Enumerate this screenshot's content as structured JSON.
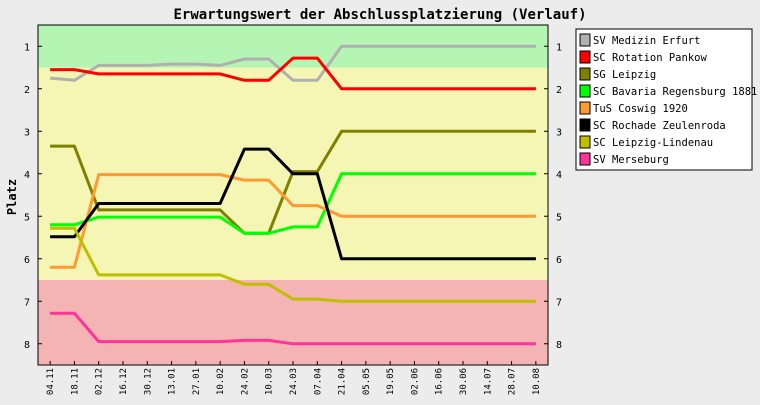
{
  "chart_data": {
    "type": "line",
    "title": "Erwartungswert der Abschlussplatzierung (Verlauf)",
    "ylabel": "Platz",
    "xlabel": "",
    "ylim": [
      1,
      8
    ],
    "y_inverted": true,
    "grid": false,
    "legend_position": "right",
    "y_ticks": [
      1,
      2,
      3,
      4,
      5,
      6,
      7,
      8
    ],
    "x": [
      "04.11",
      "18.11",
      "02.12",
      "16.12",
      "30.12",
      "13.01",
      "27.01",
      "10.02",
      "24.02",
      "10.03",
      "24.03",
      "07.04",
      "21.04",
      "05.05",
      "19.05",
      "02.06",
      "16.06",
      "30.06",
      "14.07",
      "28.07",
      "10.08"
    ],
    "bands": [
      {
        "from": 0.5,
        "to": 1.5,
        "color": "#b4f5b4"
      },
      {
        "from": 1.5,
        "to": 6.5,
        "color": "#f5f5b4"
      },
      {
        "from": 6.5,
        "to": 8.5,
        "color": "#f5b4b4"
      }
    ],
    "series": [
      {
        "name": "SV Medizin Erfurt",
        "color": "#b0b0b0",
        "values": [
          1.75,
          1.8,
          1.45,
          1.45,
          1.45,
          1.42,
          1.42,
          1.45,
          1.3,
          1.3,
          1.8,
          1.8,
          1.0,
          1.0,
          1.0,
          1.0,
          1.0,
          1.0,
          1.0,
          1.0,
          1.0
        ]
      },
      {
        "name": "SC Rotation Pankow",
        "color": "#ff0000",
        "values": [
          1.55,
          1.55,
          1.65,
          1.65,
          1.65,
          1.65,
          1.65,
          1.65,
          1.8,
          1.8,
          1.28,
          1.28,
          2.0,
          2.0,
          2.0,
          2.0,
          2.0,
          2.0,
          2.0,
          2.0,
          2.0
        ]
      },
      {
        "name": "SG Leipzig",
        "color": "#808000",
        "values": [
          3.35,
          3.35,
          4.85,
          4.85,
          4.85,
          4.85,
          4.85,
          4.85,
          5.4,
          5.4,
          3.95,
          3.95,
          3.0,
          3.0,
          3.0,
          3.0,
          3.0,
          3.0,
          3.0,
          3.0,
          3.0
        ]
      },
      {
        "name": "SC Bavaria Regensburg 1881",
        "color": "#00ff00",
        "values": [
          5.2,
          5.2,
          5.02,
          5.02,
          5.02,
          5.02,
          5.02,
          5.02,
          5.4,
          5.4,
          5.25,
          5.25,
          4.0,
          4.0,
          4.0,
          4.0,
          4.0,
          4.0,
          4.0,
          4.0,
          4.0
        ]
      },
      {
        "name": "TuS Coswig 1920",
        "color": "#ff9933",
        "values": [
          6.2,
          6.2,
          4.02,
          4.02,
          4.02,
          4.02,
          4.02,
          4.02,
          4.15,
          4.15,
          4.75,
          4.75,
          5.0,
          5.0,
          5.0,
          5.0,
          5.0,
          5.0,
          5.0,
          5.0,
          5.0
        ]
      },
      {
        "name": "SC Rochade Zeulenroda",
        "color": "#000000",
        "values": [
          5.48,
          5.48,
          4.7,
          4.7,
          4.7,
          4.7,
          4.7,
          4.7,
          3.42,
          3.42,
          4.0,
          4.0,
          6.0,
          6.0,
          6.0,
          6.0,
          6.0,
          6.0,
          6.0,
          6.0,
          6.0
        ]
      },
      {
        "name": "SC Leipzig-Lindenau",
        "color": "#bfbf00",
        "values": [
          5.28,
          5.28,
          6.38,
          6.38,
          6.38,
          6.38,
          6.38,
          6.38,
          6.6,
          6.6,
          6.95,
          6.95,
          7.0,
          7.0,
          7.0,
          7.0,
          7.0,
          7.0,
          7.0,
          7.0,
          7.0
        ]
      },
      {
        "name": "SV Merseburg",
        "color": "#ff3399",
        "values": [
          7.28,
          7.28,
          7.95,
          7.95,
          7.95,
          7.95,
          7.95,
          7.95,
          7.92,
          7.92,
          8.0,
          8.0,
          8.0,
          8.0,
          8.0,
          8.0,
          8.0,
          8.0,
          8.0,
          8.0,
          8.0
        ]
      }
    ]
  }
}
